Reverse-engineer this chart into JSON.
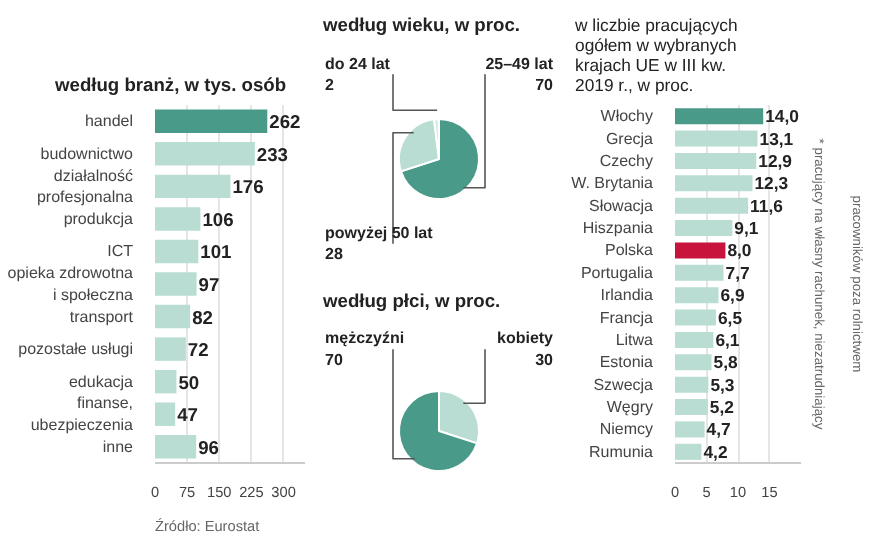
{
  "chart_data": [
    {
      "type": "bar",
      "orientation": "horizontal",
      "title": "według branż, w tys. osób",
      "categories": [
        "handel",
        "budownictwo",
        "działalność profesjonalna",
        "produkcja",
        "ICT",
        "opieka zdrowotna i społeczna",
        "transport",
        "pozostałe usługi",
        "edukacja",
        "finanse, ubezpieczenia",
        "inne"
      ],
      "values": [
        262,
        233,
        176,
        106,
        101,
        97,
        82,
        72,
        50,
        47,
        96
      ],
      "colors": [
        "#4a9a8a",
        "#b9ddd2",
        "#b9ddd2",
        "#b9ddd2",
        "#b9ddd2",
        "#b9ddd2",
        "#b9ddd2",
        "#b9ddd2",
        "#b9ddd2",
        "#b9ddd2",
        "#b9ddd2"
      ],
      "xlim": [
        0,
        350
      ],
      "xticks": [
        0,
        75,
        150,
        225,
        300
      ],
      "grid": "x",
      "data_labels": true,
      "annotations": [
        "Źródło: Eurostat"
      ]
    },
    {
      "type": "pie",
      "title": "według wieku, w proc.",
      "categories": [
        "25–49 lat",
        "powyżej 50 lat",
        "do 24 lat"
      ],
      "values": [
        70,
        28,
        2
      ],
      "colors": [
        "#4a9a8a",
        "#b9ddd2",
        "#d9eee7"
      ],
      "data_labels": true
    },
    {
      "type": "pie",
      "title": "według płci, w proc.",
      "categories": [
        "kobiety",
        "mężczyźni"
      ],
      "values": [
        30,
        70
      ],
      "colors": [
        "#b9ddd2",
        "#4a9a8a"
      ],
      "data_labels": true
    },
    {
      "type": "bar",
      "orientation": "horizontal",
      "title": "w liczbie pracujących ogółem w wybranych krajach UE w III kw. 2019 r., w proc.",
      "categories": [
        "Włochy",
        "Grecja",
        "Czechy",
        "W. Brytania",
        "Słowacja",
        "Hiszpania",
        "Polska",
        "Portugalia",
        "Irlandia",
        "Francja",
        "Litwa",
        "Estonia",
        "Szwecja",
        "Węgry",
        "Niemcy",
        "Rumunia"
      ],
      "values": [
        14.0,
        13.1,
        12.9,
        12.3,
        11.6,
        9.1,
        8.0,
        7.7,
        6.9,
        6.5,
        6.1,
        5.8,
        5.3,
        5.2,
        4.7,
        4.2
      ],
      "value_labels": [
        "14,0",
        "13,1",
        "12,9",
        "12,3",
        "11,6",
        "9,1",
        "8,0",
        "7,7",
        "6,9",
        "6,5",
        "6,1",
        "5,8",
        "5,3",
        "5,2",
        "4,7",
        "4,2"
      ],
      "colors": [
        "#4a9a8a",
        "#b9ddd2",
        "#b9ddd2",
        "#b9ddd2",
        "#b9ddd2",
        "#b9ddd2",
        "#c8143c",
        "#b9ddd2",
        "#b9ddd2",
        "#b9ddd2",
        "#b9ddd2",
        "#b9ddd2",
        "#b9ddd2",
        "#b9ddd2",
        "#b9ddd2",
        "#b9ddd2"
      ],
      "xlim": [
        0,
        20
      ],
      "xticks": [
        0,
        5,
        10,
        15
      ],
      "grid": "x",
      "annotations": [
        "* pracujący na własny rachunek, niezatrudniający pracowników poza rolnictwem"
      ]
    }
  ]
}
